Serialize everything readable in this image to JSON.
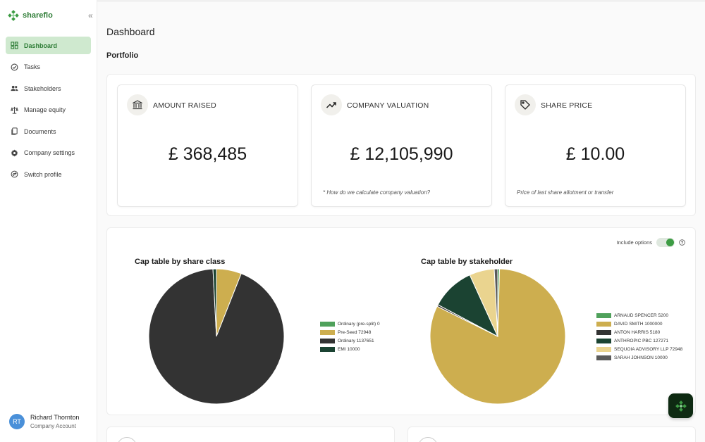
{
  "brand": {
    "name": "shareflo",
    "color": "#2f7d37"
  },
  "sidebar": {
    "items": [
      {
        "label": "Dashboard",
        "icon": "dashboard-icon",
        "active": true
      },
      {
        "label": "Tasks",
        "icon": "check-circle-icon"
      },
      {
        "label": "Stakeholders",
        "icon": "people-icon"
      },
      {
        "label": "Manage equity",
        "icon": "scales-icon"
      },
      {
        "label": "Documents",
        "icon": "documents-icon"
      },
      {
        "label": "Company settings",
        "icon": "gear-icon"
      },
      {
        "label": "Switch profile",
        "icon": "switch-icon"
      }
    ],
    "user": {
      "initials": "RT",
      "name": "Richard Thornton",
      "role": "Company Account"
    }
  },
  "main": {
    "title": "Dashboard",
    "section": "Portfolio",
    "cards": [
      {
        "label": "AMOUNT RAISED",
        "value": "£ 368,485",
        "note": "",
        "icon": "bank-icon"
      },
      {
        "label": "COMPANY VALUATION",
        "value": "£ 12,105,990",
        "note": "* How do we calculate company valuation?",
        "icon": "trending-up-icon"
      },
      {
        "label": "SHARE PRICE",
        "value": "£ 10.00",
        "note": "Price of last share allotment or transfer",
        "icon": "tag-icon"
      }
    ],
    "toggle": {
      "label": "Include options",
      "on": true
    }
  },
  "chart_data": [
    {
      "type": "pie",
      "title": "Cap table by share class",
      "labels": [
        "Ordinary (pre-split) 0",
        "Pre-Seed 72948",
        "Ordinary 1137651",
        "EMI 10000"
      ],
      "values": [
        0,
        72948,
        1137651,
        10000
      ],
      "colors": [
        "#4fa15b",
        "#cdae4f",
        "#333333",
        "#1b4332"
      ],
      "legend": "right"
    },
    {
      "type": "pie",
      "title": "Cap table by stakeholder",
      "labels": [
        "ARNAUD SPENCER 5200",
        "DAVID SMITH 1000000",
        "ANTON HARRIS 5180",
        "ANTHROPIC PBC 127271",
        "SEQUOIA ADVISORY LLP 72948",
        "SARAH JOHNSON 10000"
      ],
      "values": [
        5200,
        1000000,
        5180,
        127271,
        72948,
        10000
      ],
      "colors": [
        "#4fa15b",
        "#cdae4f",
        "#333333",
        "#1b4332",
        "#ead48f",
        "#5a5a5a"
      ],
      "legend": "right"
    }
  ]
}
